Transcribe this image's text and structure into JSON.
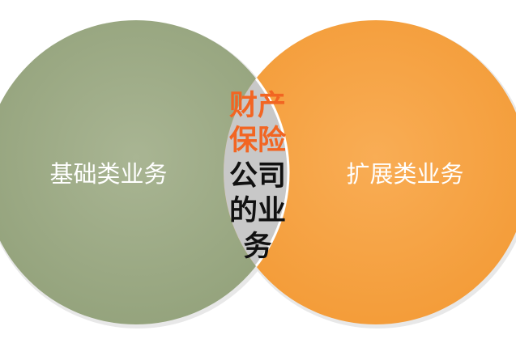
{
  "diagram": {
    "left_circle": {
      "label": "基础类业务",
      "color": "#9caa84"
    },
    "right_circle": {
      "label": "扩展类业务",
      "color": "#f8a444"
    },
    "overlap": {
      "color": "#c8c8c8",
      "outline_color": "#ffffff",
      "lines": [
        {
          "text": "财产",
          "color": "#f26522"
        },
        {
          "text": "保险",
          "color": "#f26522"
        },
        {
          "text": "公司",
          "color": "#111111"
        },
        {
          "text": "的业",
          "color": "#111111"
        },
        {
          "text": "务",
          "color": "#111111"
        }
      ]
    }
  }
}
